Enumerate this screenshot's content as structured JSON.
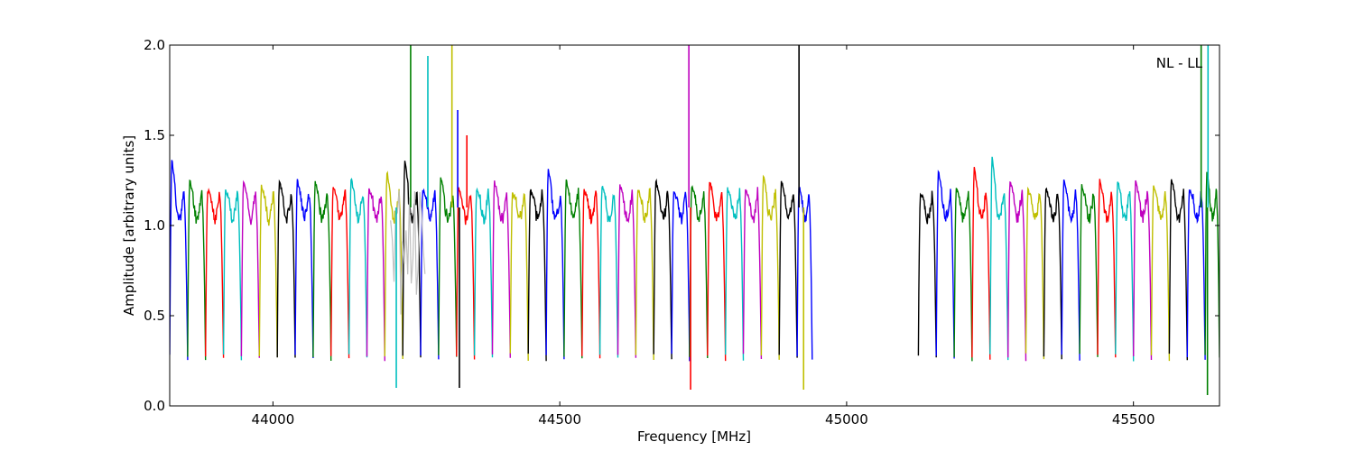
{
  "chart_data": {
    "type": "line",
    "xlabel": "Frequency [MHz]",
    "ylabel": "Amplitude [arbitrary units]",
    "xlim": [
      43820,
      45650
    ],
    "ylim": [
      0.0,
      2.0
    ],
    "x_ticks": [
      44000,
      44500,
      45000,
      45500
    ],
    "y_ticks": [
      0.0,
      0.5,
      1.0,
      1.5,
      2.0
    ],
    "x_tick_labels": [
      "44000",
      "44500",
      "45000",
      "45500"
    ],
    "y_tick_labels": [
      "0.0",
      "0.5",
      "1.0",
      "1.5",
      "2.0"
    ],
    "annotation": "NL - LL",
    "annotation_position": "top-right",
    "grid": false,
    "band_width_mhz": 31.25,
    "segments": [
      {
        "start": 43820,
        "end": 44940,
        "first_color_index": 0
      },
      {
        "start": 45125,
        "end": 45650,
        "first_color_index": 6
      }
    ],
    "band_peaks": [
      1.37,
      1.25,
      1.2,
      1.2,
      1.25,
      1.22,
      1.25,
      1.25,
      1.24,
      1.22,
      1.26,
      1.2,
      1.3,
      1.37,
      1.2,
      1.27,
      1.2,
      1.2,
      1.24,
      1.18,
      1.2,
      1.32,
      1.25,
      1.2,
      1.22,
      1.22,
      1.2,
      1.25,
      1.18,
      1.22,
      1.25,
      1.2,
      1.2,
      1.27,
      1.25,
      1.22,
      1.18,
      1.3,
      1.2,
      1.32
    ],
    "spikes": [
      {
        "x": 44240,
        "y": 2.0
      },
      {
        "x": 44270,
        "y": 1.94
      },
      {
        "x": 44312,
        "y": 2.0
      },
      {
        "x": 44322,
        "y": 1.64
      },
      {
        "x": 44338,
        "y": 1.5
      },
      {
        "x": 44725,
        "y": 2.0
      },
      {
        "x": 44917,
        "y": 2.0
      },
      {
        "x": 45618,
        "y": 2.0
      },
      {
        "x": 45630,
        "y": 2.0
      }
    ],
    "dips": [
      {
        "x": 44215,
        "y": 0.1
      },
      {
        "x": 44325,
        "y": 0.1
      },
      {
        "x": 44728,
        "y": 0.09
      },
      {
        "x": 44925,
        "y": 0.09
      },
      {
        "x": 45629,
        "y": 0.06
      }
    ],
    "colors": [
      "#0000ff",
      "#008000",
      "#ff0000",
      "#00bfbf",
      "#bf00bf",
      "#bfbf00",
      "#000000"
    ],
    "overlay_color": "#bfbfbf"
  }
}
